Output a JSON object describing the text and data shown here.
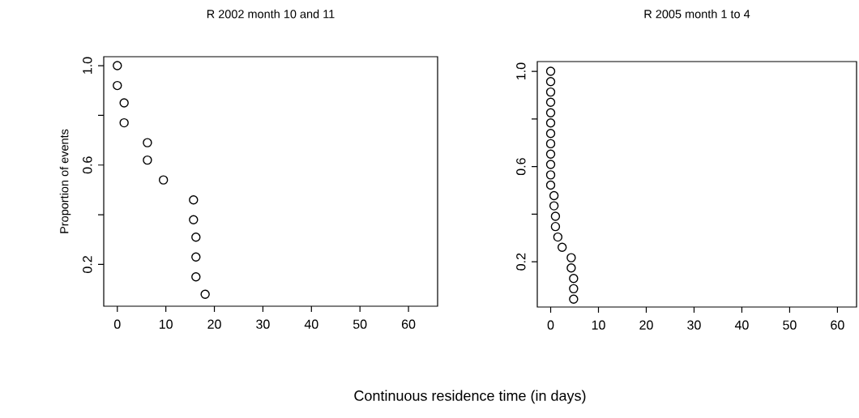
{
  "chart_data": [
    {
      "type": "scatter",
      "title": "R 2002 month 10 and 11",
      "xlabel": "Continuous residence time (in days)",
      "ylabel": "Proportion of events",
      "marker": "circle",
      "grid": false,
      "xlim": [
        -2.8,
        66
      ],
      "ylim": [
        0.032,
        1.036
      ],
      "xticks": [
        0,
        10,
        20,
        30,
        40,
        50,
        60
      ],
      "yticks": [
        {
          "value": 0.2,
          "label": "0.2"
        },
        {
          "value": 0.4,
          "label": null
        },
        {
          "value": 0.6,
          "label": "0.6"
        },
        {
          "value": 0.8,
          "label": null
        },
        {
          "value": 1.0,
          "label": "1.0"
        }
      ],
      "series": [
        {
          "color": "#000000",
          "x": [
            0,
            0,
            1.4,
            1.4,
            6.2,
            6.2,
            9.5,
            15.7,
            15.7,
            16.2,
            16.2,
            16.2,
            18.1
          ],
          "values": [
            1.0,
            0.92,
            0.85,
            0.77,
            0.69,
            0.62,
            0.54,
            0.46,
            0.38,
            0.31,
            0.23,
            0.15,
            0.08
          ]
        }
      ]
    },
    {
      "type": "scatter",
      "title": "R 2005 month 1 to 4",
      "marker": "circle",
      "grid": false,
      "xlim": [
        -2.8,
        64
      ],
      "ylim": [
        0.01,
        1.041
      ],
      "xticks": [
        0,
        10,
        20,
        30,
        40,
        50,
        60
      ],
      "yticks": [
        {
          "value": 0.2,
          "label": "0.2"
        },
        {
          "value": 0.4,
          "label": null
        },
        {
          "value": 0.6,
          "label": "0.6"
        },
        {
          "value": 0.8,
          "label": null
        },
        {
          "value": 1.0,
          "label": "1.0"
        }
      ],
      "series": [
        {
          "color": "#000000",
          "x": [
            0,
            0,
            0,
            0,
            0,
            0,
            0,
            0,
            0,
            0,
            0,
            0,
            0.7,
            0.7,
            1.0,
            1.0,
            1.5,
            2.4,
            4.3,
            4.3,
            4.8,
            4.8,
            4.8
          ],
          "values": [
            1.0,
            0.957,
            0.913,
            0.87,
            0.826,
            0.783,
            0.739,
            0.696,
            0.652,
            0.609,
            0.565,
            0.522,
            0.478,
            0.435,
            0.391,
            0.348,
            0.304,
            0.261,
            0.217,
            0.174,
            0.13,
            0.087,
            0.043
          ]
        }
      ]
    }
  ]
}
